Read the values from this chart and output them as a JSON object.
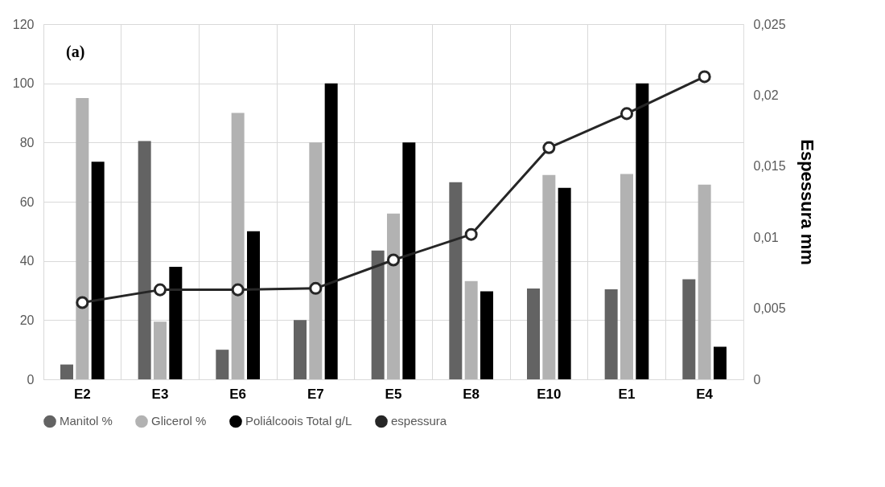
{
  "chart_data": {
    "type": "bar",
    "y2label": "Espessura mm",
    "annotations": [
      "(a)"
    ],
    "categories": [
      "E2",
      "E3",
      "E6",
      "E7",
      "E5",
      "E8",
      "E10",
      "E1",
      "E4"
    ],
    "series": [
      {
        "name": "Manitol %",
        "color": "#636363",
        "values": [
          5,
          80.5,
          10,
          20,
          43.5,
          66.6,
          30.7,
          30.4,
          33.8
        ]
      },
      {
        "name": "Glicerol %",
        "color": "#b2b2b2",
        "values": [
          95,
          19.5,
          90,
          80,
          56,
          33.2,
          69,
          69.4,
          65.8
        ]
      },
      {
        "name": "Poliálcoois Total g/L",
        "color": "#000000",
        "values": [
          73.5,
          38,
          50,
          100,
          80,
          29.7,
          64.7,
          100,
          11
        ]
      },
      {
        "name": "espessura",
        "type": "line",
        "axis": "y2",
        "color": "#262626",
        "marker": "circle",
        "values": [
          0.0054,
          0.0063,
          0.0063,
          0.0064,
          0.0084,
          0.0102,
          0.0163,
          0.0187,
          0.0213
        ]
      }
    ],
    "ylim": [
      0,
      120
    ],
    "yticks": [
      0,
      20,
      40,
      60,
      80,
      100,
      120
    ],
    "y2lim": [
      0,
      0.025
    ],
    "y2ticks": [
      0,
      {
        "value": 0.005,
        "label": "0,005"
      },
      {
        "value": 0.01,
        "label": "0,01"
      },
      {
        "value": 0.015,
        "label": "0,015"
      },
      {
        "value": 0.02,
        "label": "0,02"
      },
      {
        "value": 0.025,
        "label": "0,025"
      }
    ],
    "grid": true,
    "legend": "bottom"
  }
}
